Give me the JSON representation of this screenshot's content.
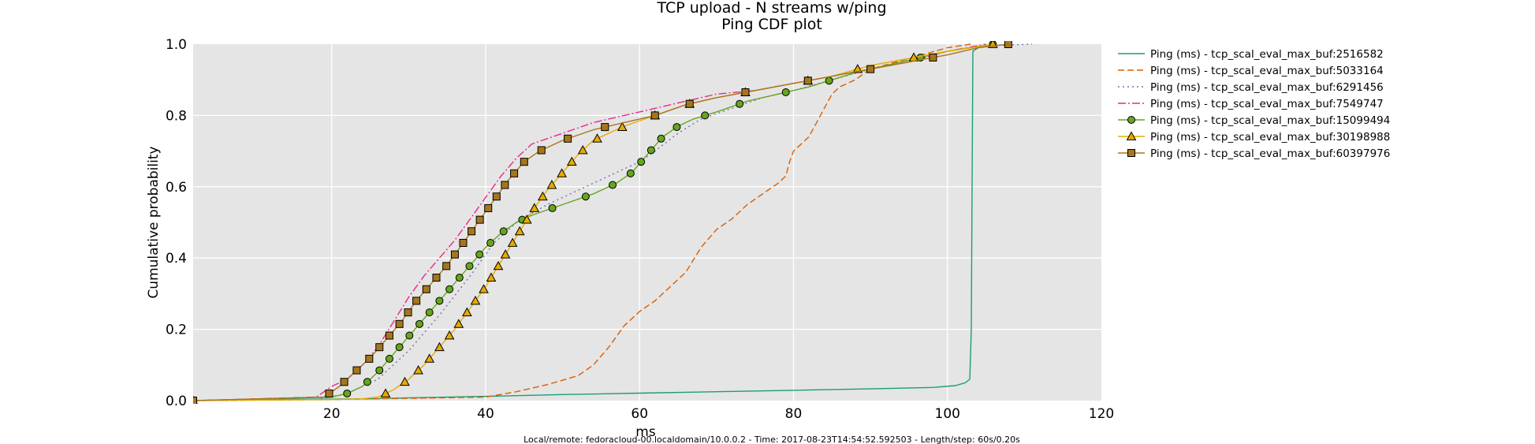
{
  "chart_data": {
    "type": "line",
    "title": "TCP upload - N streams w/ping",
    "subtitle": "Ping CDF plot",
    "xlabel": "ms",
    "ylabel": "Cumulative probability",
    "xlim": [
      2,
      120
    ],
    "ylim": [
      0,
      1
    ],
    "xticks": [
      "20",
      "40",
      "60",
      "80",
      "100",
      "120"
    ],
    "yticks": [
      "0.0",
      "0.2",
      "0.4",
      "0.6",
      "0.8",
      "1.0"
    ],
    "grid": true,
    "legend_position": "outside-right",
    "footer": "Local/remote: fedoracloud-00.localdomain/10.0.0.2 - Time: 2017-08-23T14:54:52.592503 - Length/step: 60s/0.20s",
    "series": [
      {
        "name": "Ping (ms) - tcp_scal_eval_max_buf:2516582",
        "color": "#1b9e77",
        "dash": "",
        "marker": "none",
        "points": [
          [
            2,
            0
          ],
          [
            10,
            0.003
          ],
          [
            25,
            0.005
          ],
          [
            30,
            0.008
          ],
          [
            40,
            0.012
          ],
          [
            50,
            0.017
          ],
          [
            60,
            0.021
          ],
          [
            70,
            0.025
          ],
          [
            80,
            0.029
          ],
          [
            90,
            0.033
          ],
          [
            98,
            0.037
          ],
          [
            101,
            0.042
          ],
          [
            102.3,
            0.05
          ],
          [
            102.9,
            0.06
          ],
          [
            103.1,
            0.2
          ],
          [
            103.2,
            0.6
          ],
          [
            103.3,
            0.98
          ],
          [
            104,
            0.99
          ],
          [
            106,
            1.0
          ]
        ]
      },
      {
        "name": "Ping (ms) - tcp_scal_eval_max_buf:5033164",
        "color": "#d95f02",
        "dash": "8,4",
        "marker": "none",
        "points": [
          [
            2,
            0
          ],
          [
            20,
            0.003
          ],
          [
            40,
            0.01
          ],
          [
            44,
            0.025
          ],
          [
            48,
            0.045
          ],
          [
            52,
            0.07
          ],
          [
            54,
            0.1
          ],
          [
            56,
            0.15
          ],
          [
            58,
            0.21
          ],
          [
            60,
            0.25
          ],
          [
            62,
            0.28
          ],
          [
            64,
            0.32
          ],
          [
            66,
            0.36
          ],
          [
            68,
            0.43
          ],
          [
            70,
            0.48
          ],
          [
            72,
            0.51
          ],
          [
            74,
            0.55
          ],
          [
            76,
            0.58
          ],
          [
            78,
            0.61
          ],
          [
            79,
            0.63
          ],
          [
            79.5,
            0.67
          ],
          [
            80,
            0.7
          ],
          [
            81,
            0.72
          ],
          [
            82,
            0.74
          ],
          [
            83,
            0.78
          ],
          [
            84,
            0.82
          ],
          [
            85,
            0.86
          ],
          [
            86,
            0.88
          ],
          [
            88,
            0.9
          ],
          [
            90,
            0.93
          ],
          [
            95,
            0.96
          ],
          [
            100,
            0.99
          ],
          [
            103,
            1.0
          ]
        ]
      },
      {
        "name": "Ping (ms) - tcp_scal_eval_max_buf:6291456",
        "color": "#7570b3",
        "dash": "2,4",
        "marker": "none",
        "points": [
          [
            2,
            0
          ],
          [
            18,
            0.003
          ],
          [
            22,
            0.02
          ],
          [
            26,
            0.06
          ],
          [
            30,
            0.14
          ],
          [
            34,
            0.24
          ],
          [
            38,
            0.35
          ],
          [
            41,
            0.44
          ],
          [
            44,
            0.5
          ],
          [
            48,
            0.55
          ],
          [
            52,
            0.59
          ],
          [
            56,
            0.63
          ],
          [
            60,
            0.67
          ],
          [
            62,
            0.7
          ],
          [
            65,
            0.75
          ],
          [
            68,
            0.79
          ],
          [
            72,
            0.82
          ],
          [
            76,
            0.85
          ],
          [
            80,
            0.87
          ],
          [
            85,
            0.9
          ],
          [
            90,
            0.93
          ],
          [
            96,
            0.96
          ],
          [
            100,
            0.98
          ],
          [
            104,
            0.995
          ],
          [
            111,
            1.0
          ]
        ]
      },
      {
        "name": "Ping (ms) - tcp_scal_eval_max_buf:7549747",
        "color": "#e7298a",
        "dash": "10,3,2,3",
        "marker": "none",
        "points": [
          [
            2,
            0
          ],
          [
            18,
            0.01
          ],
          [
            20,
            0.04
          ],
          [
            22,
            0.06
          ],
          [
            24,
            0.1
          ],
          [
            26,
            0.15
          ],
          [
            28,
            0.22
          ],
          [
            30,
            0.29
          ],
          [
            32,
            0.35
          ],
          [
            34,
            0.4
          ],
          [
            36,
            0.45
          ],
          [
            38,
            0.51
          ],
          [
            40,
            0.57
          ],
          [
            42,
            0.63
          ],
          [
            44,
            0.68
          ],
          [
            46,
            0.72
          ],
          [
            50,
            0.75
          ],
          [
            54,
            0.78
          ],
          [
            58,
            0.8
          ],
          [
            62,
            0.82
          ],
          [
            66,
            0.84
          ],
          [
            70,
            0.86
          ],
          [
            75,
            0.87
          ],
          [
            80,
            0.89
          ],
          [
            85,
            0.91
          ],
          [
            90,
            0.93
          ],
          [
            95,
            0.95
          ],
          [
            100,
            0.98
          ],
          [
            105,
            1.0
          ]
        ]
      },
      {
        "name": "Ping (ms) - tcp_scal_eval_max_buf:15099494",
        "color": "#66a61e",
        "dash": "",
        "marker": "circle",
        "points": [
          [
            2,
            0
          ],
          [
            20,
            0.01
          ],
          [
            22,
            0.02
          ],
          [
            24,
            0.04
          ],
          [
            26,
            0.08
          ],
          [
            28,
            0.13
          ],
          [
            30,
            0.18
          ],
          [
            32,
            0.23
          ],
          [
            34,
            0.28
          ],
          [
            36,
            0.33
          ],
          [
            38,
            0.38
          ],
          [
            40,
            0.43
          ],
          [
            42,
            0.47
          ],
          [
            44,
            0.5
          ],
          [
            46,
            0.52
          ],
          [
            50,
            0.55
          ],
          [
            54,
            0.58
          ],
          [
            57,
            0.61
          ],
          [
            59,
            0.64
          ],
          [
            61,
            0.69
          ],
          [
            63,
            0.74
          ],
          [
            65,
            0.77
          ],
          [
            67,
            0.79
          ],
          [
            70,
            0.81
          ],
          [
            74,
            0.84
          ],
          [
            78,
            0.86
          ],
          [
            82,
            0.88
          ],
          [
            85,
            0.9
          ],
          [
            88,
            0.92
          ],
          [
            92,
            0.94
          ],
          [
            96,
            0.96
          ],
          [
            100,
            0.98
          ],
          [
            103,
            0.99
          ],
          [
            106,
            1.0
          ]
        ]
      },
      {
        "name": "Ping (ms) - tcp_scal_eval_max_buf:30198988",
        "color": "#e6ab02",
        "dash": "",
        "marker": "triangle",
        "points": [
          [
            2,
            0
          ],
          [
            20,
            0.003
          ],
          [
            24,
            0.005
          ],
          [
            26,
            0.01
          ],
          [
            28,
            0.03
          ],
          [
            30,
            0.06
          ],
          [
            32,
            0.1
          ],
          [
            34,
            0.15
          ],
          [
            36,
            0.2
          ],
          [
            38,
            0.26
          ],
          [
            40,
            0.32
          ],
          [
            42,
            0.39
          ],
          [
            44,
            0.46
          ],
          [
            46,
            0.53
          ],
          [
            48,
            0.59
          ],
          [
            50,
            0.64
          ],
          [
            52,
            0.69
          ],
          [
            54,
            0.73
          ],
          [
            58,
            0.77
          ],
          [
            62,
            0.8
          ],
          [
            66,
            0.83
          ],
          [
            70,
            0.85
          ],
          [
            75,
            0.87
          ],
          [
            80,
            0.89
          ],
          [
            85,
            0.91
          ],
          [
            90,
            0.94
          ],
          [
            95,
            0.96
          ],
          [
            100,
            0.98
          ],
          [
            103,
            0.99
          ],
          [
            106,
            1.0
          ]
        ]
      },
      {
        "name": "Ping (ms) - tcp_scal_eval_max_buf:60397976",
        "color": "#a6761d",
        "dash": "",
        "marker": "square",
        "points": [
          [
            2,
            0
          ],
          [
            19,
            0.01
          ],
          [
            21,
            0.04
          ],
          [
            23,
            0.08
          ],
          [
            25,
            0.12
          ],
          [
            27,
            0.17
          ],
          [
            29,
            0.22
          ],
          [
            31,
            0.28
          ],
          [
            33,
            0.33
          ],
          [
            35,
            0.38
          ],
          [
            37,
            0.44
          ],
          [
            39,
            0.5
          ],
          [
            41,
            0.56
          ],
          [
            43,
            0.62
          ],
          [
            45,
            0.67
          ],
          [
            47,
            0.7
          ],
          [
            50,
            0.73
          ],
          [
            54,
            0.76
          ],
          [
            58,
            0.78
          ],
          [
            62,
            0.8
          ],
          [
            66,
            0.83
          ],
          [
            70,
            0.85
          ],
          [
            75,
            0.87
          ],
          [
            80,
            0.89
          ],
          [
            85,
            0.91
          ],
          [
            90,
            0.93
          ],
          [
            95,
            0.95
          ],
          [
            100,
            0.97
          ],
          [
            104,
            0.99
          ],
          [
            108,
            1.0
          ]
        ]
      }
    ]
  }
}
